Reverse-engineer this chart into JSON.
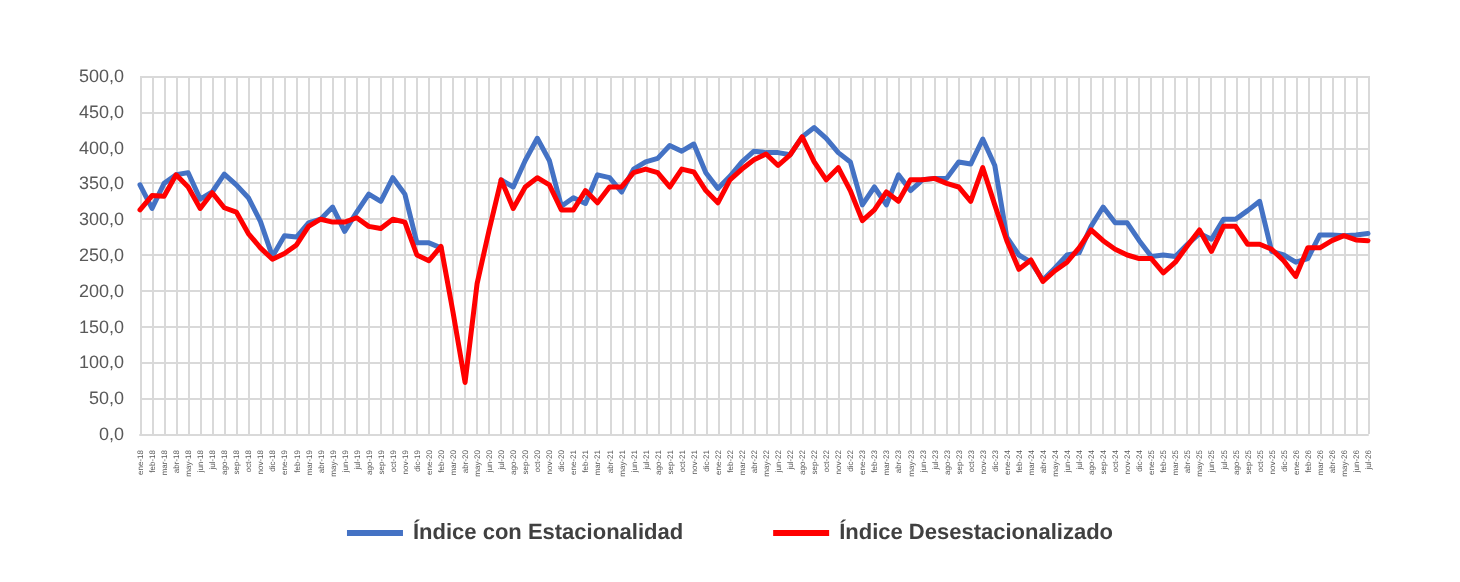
{
  "chart_data": {
    "type": "line",
    "categories": [
      "ene-18",
      "feb-18",
      "mar-18",
      "abr-18",
      "may-18",
      "jun-18",
      "jul-18",
      "ago-18",
      "sep-18",
      "oct-18",
      "nov-18",
      "dic-18",
      "ene-19",
      "feb-19",
      "mar-19",
      "abr-19",
      "may-19",
      "jun-19",
      "jul-19",
      "ago-19",
      "sep-19",
      "oct-19",
      "nov-19",
      "dic-19",
      "ene-20",
      "feb-20",
      "mar-20",
      "abr-20",
      "may-20",
      "jun-20",
      "jul-20",
      "ago-20",
      "sep-20",
      "oct-20",
      "nov-20",
      "dic-20",
      "ene-21",
      "feb-21",
      "mar-21",
      "abr-21",
      "may-21",
      "jun-21",
      "jul-21",
      "ago-21",
      "sep-21",
      "oct-21",
      "nov-21",
      "dic-21",
      "ene-22",
      "feb-22",
      "mar-22",
      "abr-22",
      "may-22",
      "jun-22",
      "jul-22",
      "ago-22",
      "sep-22",
      "oct-22",
      "nov-22",
      "dic-22",
      "ene-23",
      "feb-23",
      "mar-23",
      "abr-23",
      "may-23",
      "jun-23",
      "jul-23",
      "ago-23",
      "sep-23",
      "oct-23",
      "nov-23",
      "dic-23",
      "ene-24",
      "feb-24",
      "mar-24",
      "abr-24",
      "may-24",
      "jun-24",
      "jul-24",
      "ago-24",
      "sep-24",
      "oct-24",
      "nov-24",
      "dic-24",
      "ene-25",
      "feb-25",
      "mar-25",
      "abr-25",
      "may-25",
      "jun-25",
      "jul-25",
      "ago-25",
      "sep-25",
      "oct-25",
      "nov-25",
      "dic-25",
      "ene-26",
      "feb-26",
      "mar-26",
      "abr-26",
      "may-26",
      "jun-26",
      "jul-26"
    ],
    "series": [
      {
        "name": "Índice con Estacionalidad",
        "color": "#4472c4",
        "values": [
          348,
          315,
          350,
          362,
          365,
          328,
          338,
          363,
          348,
          330,
          297,
          248,
          277,
          275,
          295,
          300,
          317,
          283,
          310,
          335,
          325,
          358,
          335,
          267,
          267,
          260,
          null,
          null,
          null,
          null,
          355,
          345,
          382,
          413,
          382,
          318,
          330,
          322,
          362,
          358,
          338,
          370,
          380,
          385,
          403,
          395,
          405,
          365,
          343,
          360,
          380,
          395,
          393,
          393,
          390,
          415,
          428,
          413,
          393,
          380,
          320,
          345,
          320,
          362,
          340,
          355,
          357,
          357,
          380,
          377,
          412,
          375,
          275,
          250,
          240,
          215,
          232,
          250,
          253,
          290,
          317,
          295,
          295,
          270,
          248,
          250,
          248,
          265,
          280,
          272,
          300,
          300,
          312,
          325,
          255,
          250,
          240,
          245,
          278,
          278,
          277,
          278,
          280
        ]
      },
      {
        "name": "Índice Desestacionalizado",
        "color": "#ff0000",
        "values": [
          313,
          333,
          332,
          362,
          345,
          315,
          337,
          316,
          310,
          280,
          260,
          244,
          252,
          264,
          290,
          300,
          296,
          296,
          302,
          290,
          287,
          300,
          296,
          250,
          242,
          262,
          170,
          72,
          210,
          285,
          355,
          315,
          345,
          358,
          348,
          313,
          313,
          340,
          323,
          345,
          345,
          365,
          370,
          365,
          345,
          370,
          366,
          340,
          323,
          355,
          370,
          383,
          391,
          375,
          390,
          415,
          380,
          355,
          372,
          340,
          298,
          313,
          338,
          325,
          355,
          355,
          357,
          350,
          345,
          325,
          372,
          320,
          270,
          230,
          243,
          213,
          228,
          240,
          260,
          285,
          270,
          258,
          250,
          245,
          245,
          225,
          240,
          263,
          285,
          255,
          290,
          290,
          265,
          265,
          258,
          242,
          220,
          260,
          260,
          270,
          277,
          271,
          270
        ]
      }
    ],
    "ylim": [
      0,
      500
    ],
    "yticks": [
      {
        "value": 0,
        "label": "0,0"
      },
      {
        "value": 50,
        "label": "50,0"
      },
      {
        "value": 100,
        "label": "100,0"
      },
      {
        "value": 150,
        "label": "150,0"
      },
      {
        "value": 200,
        "label": "200,0"
      },
      {
        "value": 250,
        "label": "250,0"
      },
      {
        "value": 300,
        "label": "300,0"
      },
      {
        "value": 350,
        "label": "350,0"
      },
      {
        "value": 400,
        "label": "400,0"
      },
      {
        "value": 450,
        "label": "450,0"
      },
      {
        "value": 500,
        "label": "500,0"
      }
    ],
    "grid": true,
    "legend": "bottom",
    "marker": "none",
    "line_style": "solid"
  }
}
